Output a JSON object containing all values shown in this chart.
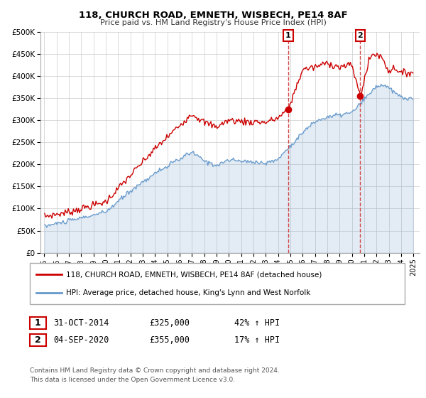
{
  "title": "118, CHURCH ROAD, EMNETH, WISBECH, PE14 8AF",
  "subtitle": "Price paid vs. HM Land Registry's House Price Index (HPI)",
  "ylim": [
    0,
    500000
  ],
  "yticks": [
    0,
    50000,
    100000,
    150000,
    200000,
    250000,
    300000,
    350000,
    400000,
    450000,
    500000
  ],
  "ytick_labels": [
    "£0",
    "£50K",
    "£100K",
    "£150K",
    "£200K",
    "£250K",
    "£300K",
    "£350K",
    "£400K",
    "£450K",
    "£500K"
  ],
  "red_color": "#cc0000",
  "blue_color": "#6699cc",
  "blue_fill_color": "#6699cc",
  "vline_color": "#cc3333",
  "annotation_box_color": "#cc0000",
  "legend_label_red": "118, CHURCH ROAD, EMNETH, WISBECH, PE14 8AF (detached house)",
  "legend_label_blue": "HPI: Average price, detached house, King's Lynn and West Norfolk",
  "sale1_label": "1",
  "sale1_date": "31-OCT-2014",
  "sale1_price": "£325,000",
  "sale1_hpi": "42% ↑ HPI",
  "sale2_label": "2",
  "sale2_date": "04-SEP-2020",
  "sale2_price": "£355,000",
  "sale2_hpi": "17% ↑ HPI",
  "footer1": "Contains HM Land Registry data © Crown copyright and database right 2024.",
  "footer2": "This data is licensed under the Open Government Licence v3.0.",
  "vline1_x": 2014.83,
  "vline2_x": 2020.67,
  "sale1_marker_x": 2014.83,
  "sale1_marker_y": 325000,
  "sale2_marker_x": 2020.67,
  "sale2_marker_y": 355000,
  "xlim_start": 1994.7,
  "xlim_end": 2025.5,
  "grid_color": "#cccccc",
  "bg_color": "white",
  "spine_color": "#aaaaaa"
}
